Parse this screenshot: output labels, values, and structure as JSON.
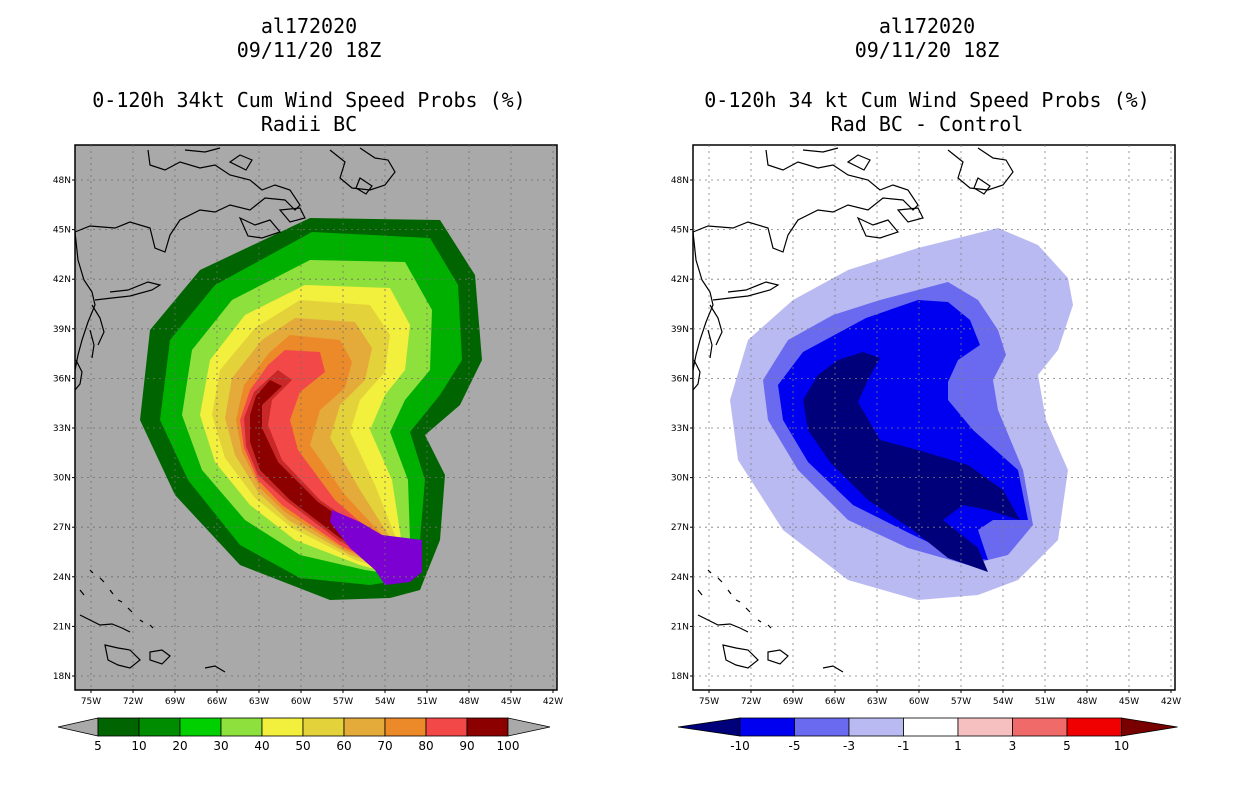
{
  "panels": [
    {
      "storm_id": "al172020",
      "datetime": "09/11/20 18Z",
      "title": "0-120h 34kt Cum Wind Speed Probs (%)",
      "subtitle": "Radii BC",
      "background": "#a9a9a9",
      "colorbar": {
        "labels": [
          "5",
          "10",
          "20",
          "30",
          "40",
          "50",
          "60",
          "70",
          "80",
          "90",
          "100"
        ],
        "colors": [
          "#006400",
          "#008c00",
          "#00d000",
          "#8ee13c",
          "#f2f03c",
          "#e4d23a",
          "#e4aa3a",
          "#ec8a2a",
          "#f24848",
          "#8c0000",
          "#7d00d2",
          "#a9a9a9"
        ]
      }
    },
    {
      "storm_id": "al172020",
      "datetime": "09/11/20 18Z",
      "title": "0-120h 34 kt Cum Wind Speed Probs (%)",
      "subtitle": "Rad BC - Control",
      "background": "#ffffff",
      "colorbar": {
        "labels": [
          "-10",
          "-5",
          "-3",
          "-1",
          "1",
          "3",
          "5",
          "10"
        ],
        "colors": [
          "#00007a",
          "#0000f0",
          "#6a6af0",
          "#babaf2",
          "#ffffff",
          "#f7c0c0",
          "#f06a6a",
          "#f00000",
          "#780000"
        ]
      }
    }
  ],
  "axes": {
    "lat_labels": [
      "48N",
      "45N",
      "42N",
      "39N",
      "36N",
      "33N",
      "30N",
      "27N",
      "24N",
      "21N",
      "18N"
    ],
    "lon_labels": [
      "75W",
      "72W",
      "69W",
      "66W",
      "63W",
      "60W",
      "57W",
      "54W",
      "51W",
      "48W",
      "45W",
      "42W"
    ]
  }
}
